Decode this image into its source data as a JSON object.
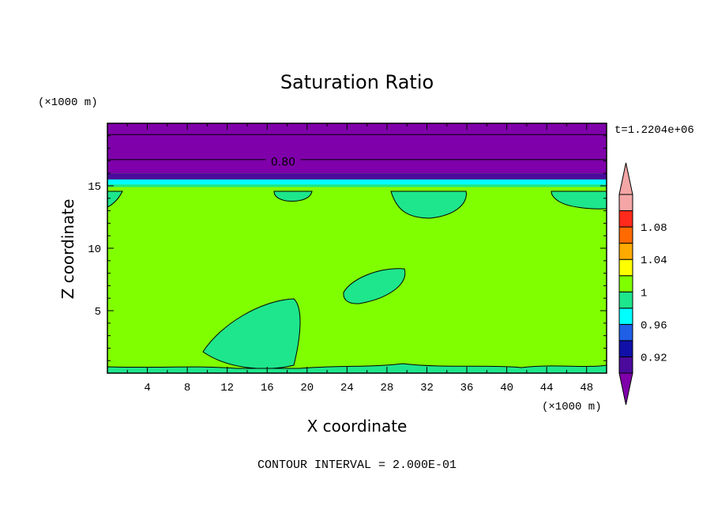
{
  "chart_data": {
    "type": "heatmap",
    "title": "Saturation Ratio",
    "xlabel": "X coordinate",
    "ylabel": "Z coordinate",
    "x_unit": "(×1000 m)",
    "y_unit": "(×1000 m)",
    "time_label": "t=1.2204e+06",
    "footer": "CONTOUR INTERVAL = 2.000E-01",
    "contour_label": "0.80",
    "xlim": [
      0,
      50
    ],
    "ylim": [
      0,
      20
    ],
    "x_ticks": [
      "4",
      "8",
      "12",
      "16",
      "20",
      "24",
      "28",
      "32",
      "36",
      "40",
      "44",
      "48"
    ],
    "y_ticks": [
      "5",
      "10",
      "15"
    ],
    "colorbar": {
      "labels": [
        "0.92",
        "0.96",
        "1",
        "1.04",
        "1.08"
      ],
      "levels": [
        0.9,
        0.92,
        0.94,
        0.96,
        0.98,
        1.0,
        1.02,
        1.04,
        1.06,
        1.08,
        1.1
      ],
      "colors": [
        "#4b0a9c",
        "#1010a8",
        "#1e5fe6",
        "#00ffff",
        "#1ee68c",
        "#80ff00",
        "#ffff00",
        "#ffaa00",
        "#ff6a00",
        "#ff2a1a",
        "#f4a6a6"
      ],
      "under_color": "#7f00aa",
      "over_color": "#f4a6a6"
    },
    "field": {
      "background_color": "#80ff00",
      "background_level": "1",
      "moist_color": "#1ee68c",
      "dry_band_color": "#7f00aa",
      "deep_band_color": "#4b0a9c",
      "cyan_band_color": "#00ffff"
    }
  }
}
